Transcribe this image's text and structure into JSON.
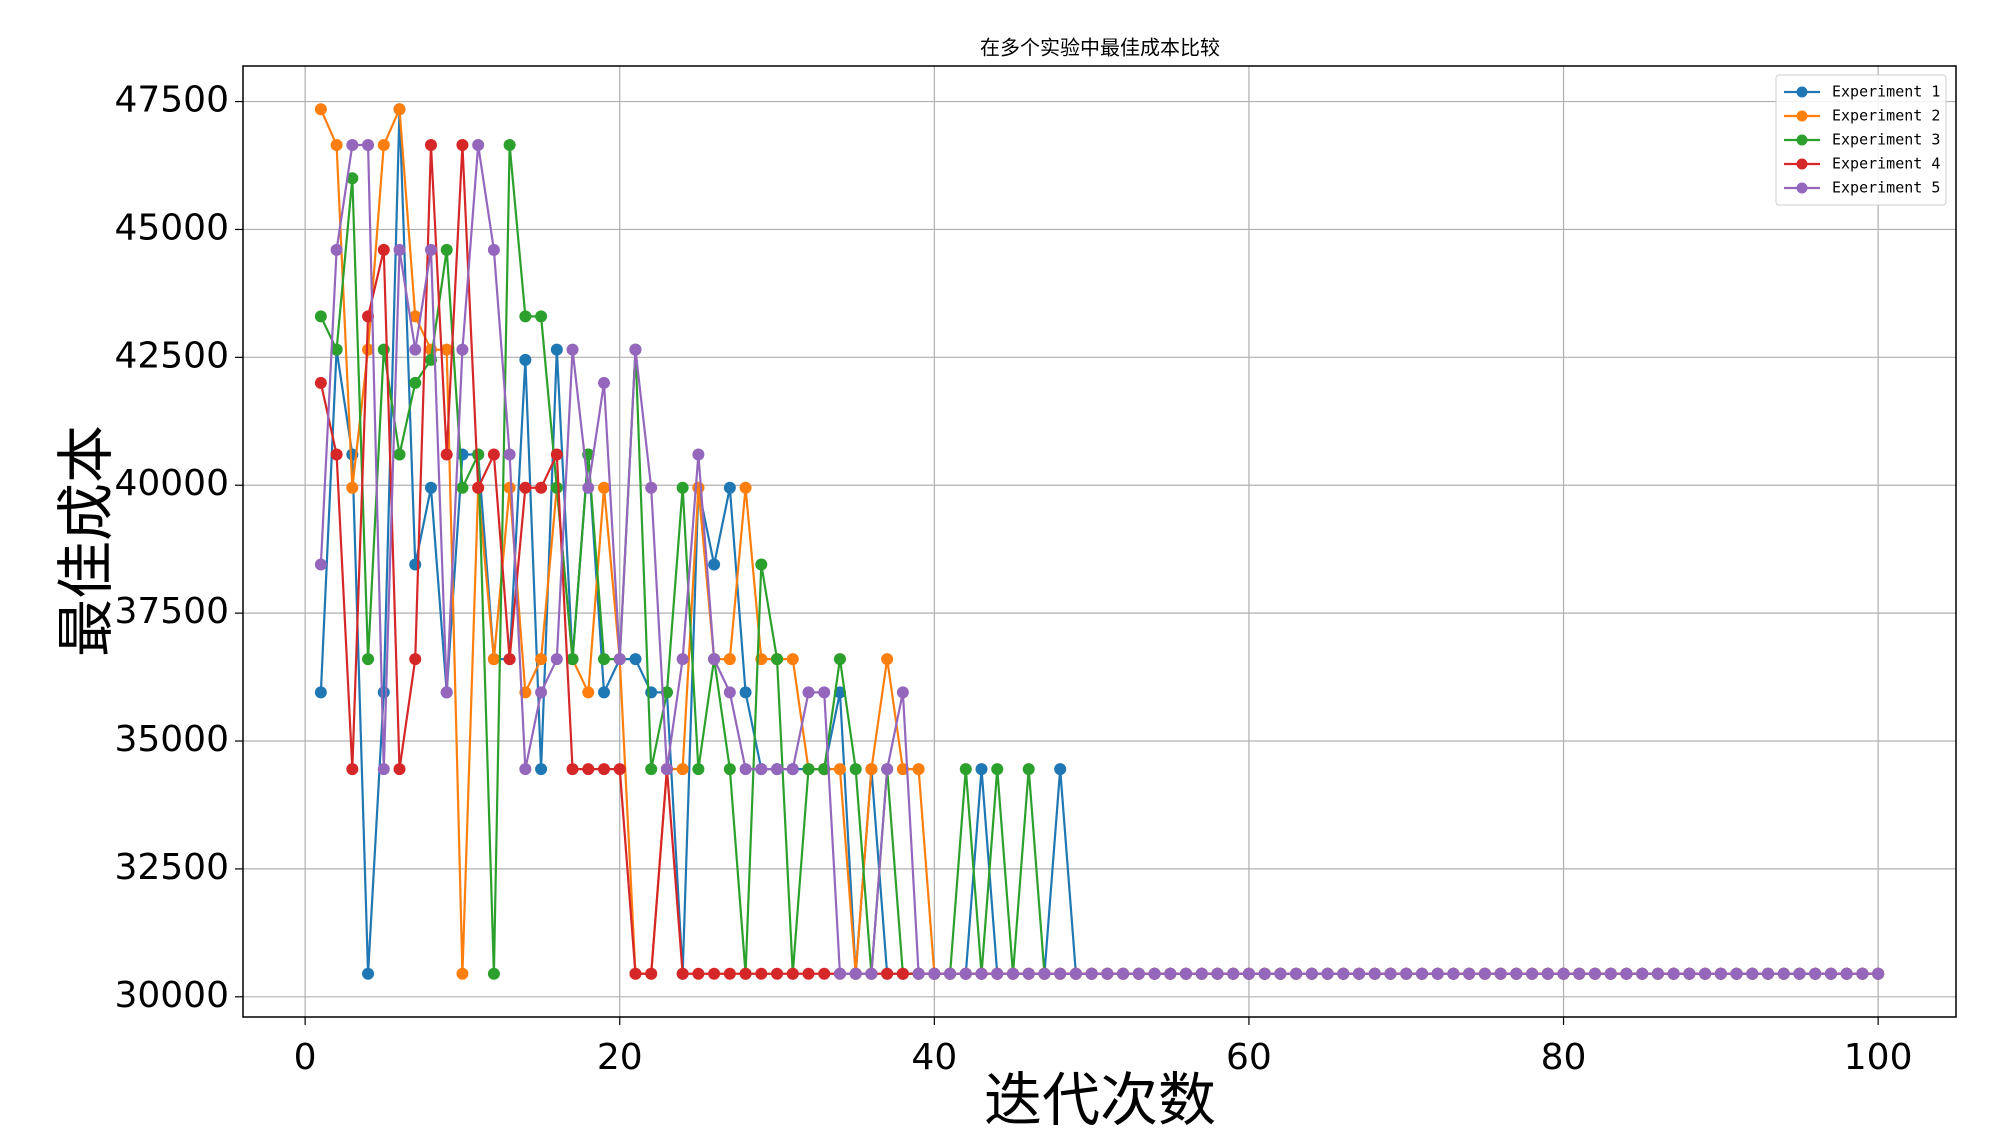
{
  "chart_data": {
    "type": "line",
    "title": "在多个实验中最佳成本比较",
    "x_label": "迭代次数",
    "y_label": "最佳成本",
    "x": [
      1,
      2,
      3,
      4,
      5,
      6,
      7,
      8,
      9,
      10,
      11,
      12,
      13,
      14,
      15,
      16,
      17,
      18,
      19,
      20,
      21,
      22,
      23,
      24,
      25,
      26,
      27,
      28,
      29,
      30,
      31,
      32,
      33,
      34,
      35,
      36,
      37,
      38,
      39,
      40,
      41,
      42,
      43,
      44,
      45,
      46,
      47,
      48,
      49,
      50,
      51,
      52,
      53,
      54,
      55,
      56,
      57,
      58,
      59,
      60,
      61,
      62,
      63,
      64,
      65,
      66,
      67,
      68,
      69,
      70,
      71,
      72,
      73,
      74,
      75,
      76,
      77,
      78,
      79,
      80,
      81,
      82,
      83,
      84,
      85,
      86,
      87,
      88,
      89,
      90,
      91,
      92,
      93,
      94,
      95,
      96,
      97,
      98,
      99,
      100
    ],
    "series": [
      {
        "name": "Experiment 1",
        "color": "#1f77b4",
        "values": [
          35950,
          42650,
          40600,
          30450,
          35950,
          47350,
          38450,
          39950,
          35950,
          40600,
          40600,
          36600,
          36600,
          42450,
          34450,
          42650,
          36600,
          40600,
          35950,
          36600,
          36600,
          35950,
          35950,
          30450,
          39950,
          38450,
          39950,
          35950,
          34450,
          34450,
          34450,
          34450,
          34450,
          35950,
          30450,
          34450,
          30450,
          30450,
          30450,
          30450,
          30450,
          30450,
          34450,
          30450,
          30450,
          30450,
          30450,
          34450,
          30450,
          30450,
          30450,
          30450,
          30450,
          30450,
          30450,
          30450,
          30450,
          30450,
          30450,
          30450,
          30450,
          30450,
          30450,
          30450,
          30450,
          30450,
          30450,
          30450,
          30450,
          30450,
          30450,
          30450,
          30450,
          30450,
          30450,
          30450,
          30450,
          30450,
          30450,
          30450,
          30450,
          30450,
          30450,
          30450,
          30450,
          30450,
          30450,
          30450,
          30450,
          30450,
          30450,
          30450,
          30450,
          30450,
          30450,
          30450,
          30450,
          30450,
          30450,
          30450
        ]
      },
      {
        "name": "Experiment 2",
        "color": "#ff7f0e",
        "values": [
          47350,
          46650,
          39950,
          42650,
          46650,
          47350,
          43300,
          42650,
          42650,
          30450,
          39950,
          36600,
          39950,
          35950,
          36600,
          39950,
          36600,
          35950,
          39950,
          36600,
          30450,
          30450,
          34450,
          34450,
          39950,
          36600,
          36600,
          39950,
          36600,
          36600,
          36600,
          34450,
          34450,
          34450,
          30450,
          34450,
          36600,
          34450,
          34450,
          30450,
          30450,
          30450,
          30450,
          30450,
          30450,
          30450,
          30450,
          30450,
          30450,
          30450,
          30450,
          30450,
          30450,
          30450,
          30450,
          30450,
          30450,
          30450,
          30450,
          30450,
          30450,
          30450,
          30450,
          30450,
          30450,
          30450,
          30450,
          30450,
          30450,
          30450,
          30450,
          30450,
          30450,
          30450,
          30450,
          30450,
          30450,
          30450,
          30450,
          30450,
          30450,
          30450,
          30450,
          30450,
          30450,
          30450,
          30450,
          30450,
          30450,
          30450,
          30450,
          30450,
          30450,
          30450,
          30450,
          30450,
          30450,
          30450,
          30450,
          30450
        ]
      },
      {
        "name": "Experiment 3",
        "color": "#2ca02c",
        "values": [
          43300,
          42650,
          46000,
          36600,
          42650,
          40600,
          42000,
          42450,
          44600,
          39950,
          40600,
          30450,
          46650,
          43300,
          43300,
          39950,
          36600,
          40600,
          36600,
          36600,
          42650,
          34450,
          35950,
          39950,
          34450,
          36600,
          34450,
          30450,
          38450,
          36600,
          30450,
          34450,
          34450,
          36600,
          34450,
          30450,
          34450,
          30450,
          30450,
          30450,
          30450,
          34450,
          30450,
          34450,
          30450,
          34450,
          30450,
          30450,
          30450,
          30450,
          30450,
          30450,
          30450,
          30450,
          30450,
          30450,
          30450,
          30450,
          30450,
          30450,
          30450,
          30450,
          30450,
          30450,
          30450,
          30450,
          30450,
          30450,
          30450,
          30450,
          30450,
          30450,
          30450,
          30450,
          30450,
          30450,
          30450,
          30450,
          30450,
          30450,
          30450,
          30450,
          30450,
          30450,
          30450,
          30450,
          30450,
          30450,
          30450,
          30450,
          30450,
          30450,
          30450,
          30450,
          30450,
          30450,
          30450,
          30450,
          30450,
          30450
        ]
      },
      {
        "name": "Experiment 4",
        "color": "#d62728",
        "values": [
          42000,
          40600,
          34450,
          43300,
          44600,
          34450,
          36600,
          46650,
          40600,
          46650,
          39950,
          40600,
          36600,
          39950,
          39950,
          40600,
          34450,
          34450,
          34450,
          34450,
          30450,
          30450,
          34450,
          30450,
          30450,
          30450,
          30450,
          30450,
          30450,
          30450,
          30450,
          30450,
          30450,
          30450,
          30450,
          30450,
          30450,
          30450,
          30450,
          30450,
          30450,
          30450,
          30450,
          30450,
          30450,
          30450,
          30450,
          30450,
          30450,
          30450,
          30450,
          30450,
          30450,
          30450,
          30450,
          30450,
          30450,
          30450,
          30450,
          30450,
          30450,
          30450,
          30450,
          30450,
          30450,
          30450,
          30450,
          30450,
          30450,
          30450,
          30450,
          30450,
          30450,
          30450,
          30450,
          30450,
          30450,
          30450,
          30450,
          30450,
          30450,
          30450,
          30450,
          30450,
          30450,
          30450,
          30450,
          30450,
          30450,
          30450,
          30450,
          30450,
          30450,
          30450,
          30450,
          30450,
          30450,
          30450,
          30450,
          30450
        ]
      },
      {
        "name": "Experiment 5",
        "color": "#9467bd",
        "values": [
          38450,
          44600,
          46650,
          46650,
          34450,
          44600,
          42650,
          44600,
          35950,
          42650,
          46650,
          44600,
          40600,
          34450,
          35950,
          36600,
          42650,
          39950,
          42000,
          36600,
          42650,
          39950,
          34450,
          36600,
          40600,
          36600,
          35950,
          34450,
          34450,
          34450,
          34450,
          35950,
          35950,
          30450,
          30450,
          30450,
          34450,
          35950,
          30450,
          30450,
          30450,
          30450,
          30450,
          30450,
          30450,
          30450,
          30450,
          30450,
          30450,
          30450,
          30450,
          30450,
          30450,
          30450,
          30450,
          30450,
          30450,
          30450,
          30450,
          30450,
          30450,
          30450,
          30450,
          30450,
          30450,
          30450,
          30450,
          30450,
          30450,
          30450,
          30450,
          30450,
          30450,
          30450,
          30450,
          30450,
          30450,
          30450,
          30450,
          30450,
          30450,
          30450,
          30450,
          30450,
          30450,
          30450,
          30450,
          30450,
          30450,
          30450,
          30450,
          30450,
          30450,
          30450,
          30450,
          30450,
          30450,
          30450,
          30450,
          30450
        ]
      }
    ],
    "xlim": [
      -3.95,
      104.95
    ],
    "xticks": [
      0,
      20,
      40,
      60,
      80,
      100
    ],
    "ylim": [
      29605,
      48195
    ],
    "yticks": [
      30000,
      32500,
      35000,
      37500,
      40000,
      42500,
      45000,
      47500
    ],
    "grid": true,
    "legend": "upper right",
    "markers": true
  }
}
